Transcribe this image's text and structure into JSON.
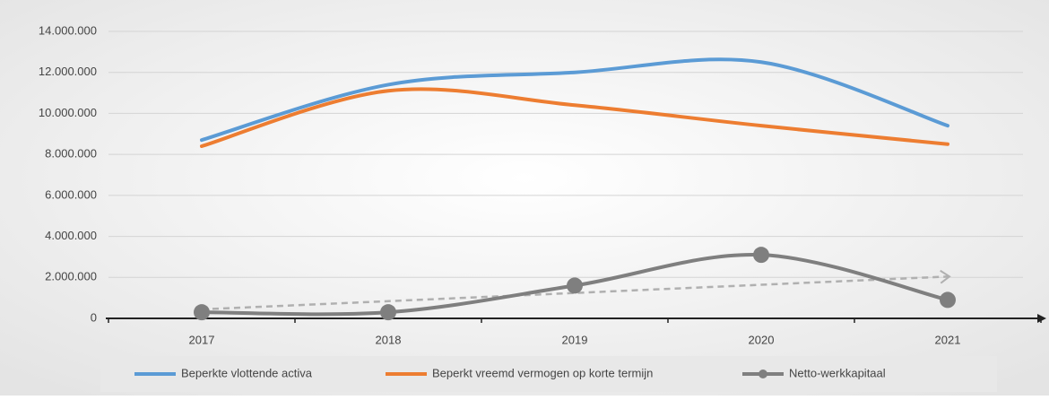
{
  "chart_data": {
    "type": "line",
    "smooth": true,
    "categories": [
      "2017",
      "2018",
      "2019",
      "2020",
      "2021"
    ],
    "series": [
      {
        "name": "Beperkte vlottende activa",
        "color": "#5b9bd5",
        "values": [
          8700000,
          11400000,
          12000000,
          12500000,
          9400000
        ]
      },
      {
        "name": "Beperkt vreemd vermogen op korte termijn",
        "color": "#ed7d31",
        "values": [
          8400000,
          11100000,
          10400000,
          9400000,
          8500000
        ]
      },
      {
        "name": "Netto-werkkapitaal",
        "color": "#7f7f7f",
        "values": [
          300000,
          300000,
          1600000,
          3100000,
          900000
        ],
        "markers": true,
        "trendline": true
      }
    ],
    "ylim": [
      0,
      14000000
    ],
    "yticks": [
      0,
      {
        "value": 2000000,
        "label": "2.000.000"
      },
      {
        "value": 4000000,
        "label": "4.000.000"
      },
      {
        "value": 6000000,
        "label": "6.000.000"
      },
      {
        "value": 8000000,
        "label": "8.000.000"
      },
      {
        "value": 10000000,
        "label": "10.000.000"
      },
      {
        "value": 12000000,
        "label": "12.000.000"
      },
      {
        "value": 14000000,
        "label": "14.000.000"
      }
    ],
    "grid": true,
    "legend": "bottom"
  }
}
